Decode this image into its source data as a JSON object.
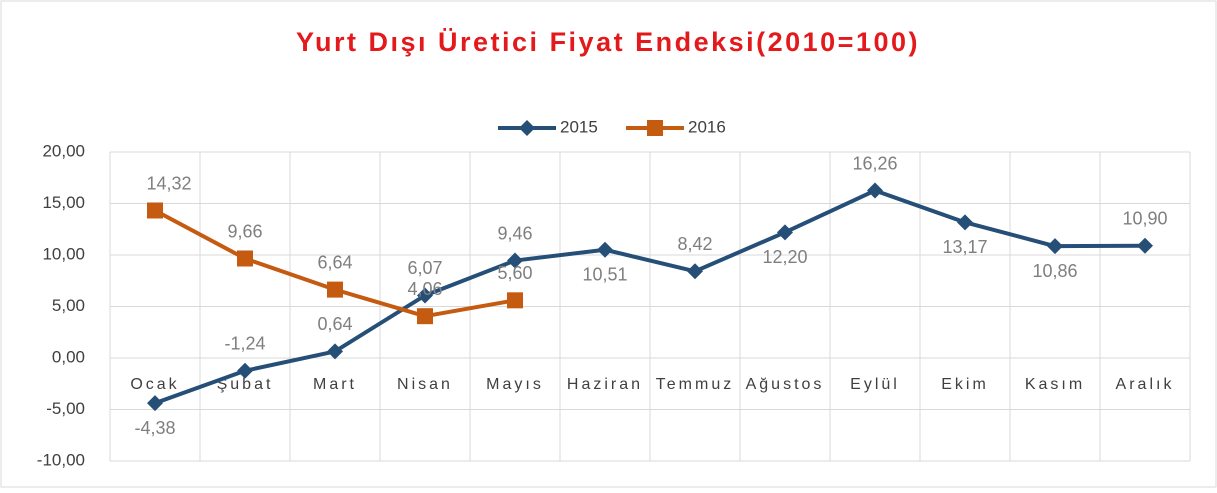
{
  "chart_data": {
    "type": "line",
    "title": "Yurt Dışı Üretici Fiyat Endeksi(2010=100)",
    "categories": [
      "Ocak",
      "Şubat",
      "Mart",
      "Nisan",
      "Mayıs",
      "Haziran",
      "Temmuz",
      "Ağustos",
      "Eylül",
      "Ekim",
      "Kasım",
      "Aralık"
    ],
    "series": [
      {
        "name": "2015",
        "color": "#264f78",
        "marker": "diamond",
        "values": [
          -4.38,
          -1.24,
          0.64,
          6.07,
          9.46,
          10.51,
          8.42,
          12.2,
          16.26,
          13.17,
          10.86,
          10.9
        ],
        "value_labels": [
          "-4,38",
          "-1,24",
          "0,64",
          "6,07",
          "9,46",
          "10,51",
          "8,42",
          "12,20",
          "16,26",
          "13,17",
          "10,86",
          "10,90"
        ]
      },
      {
        "name": "2016",
        "color": "#c55a11",
        "marker": "square",
        "values": [
          14.32,
          9.66,
          6.64,
          4.06,
          5.6,
          null,
          null,
          null,
          null,
          null,
          null,
          null
        ],
        "value_labels": [
          "14,32",
          "9,66",
          "6,64",
          "4,06",
          "5,60",
          null,
          null,
          null,
          null,
          null,
          null,
          null
        ]
      }
    ],
    "ylim": [
      -10,
      20
    ],
    "yticks": [
      {
        "value": -10,
        "label": "-10,00"
      },
      {
        "value": -5,
        "label": "-5,00"
      },
      {
        "value": 0,
        "label": "0,00"
      },
      {
        "value": 5,
        "label": "5,00"
      },
      {
        "value": 10,
        "label": "10,00"
      },
      {
        "value": 15,
        "label": "15,00"
      },
      {
        "value": 20,
        "label": "20,00"
      }
    ],
    "grid": true,
    "legend": "top"
  }
}
